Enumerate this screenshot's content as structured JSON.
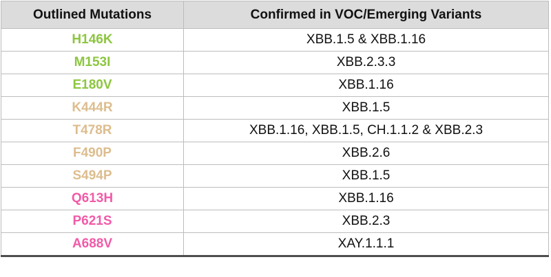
{
  "table": {
    "headers": [
      "Outlined Mutations",
      "Confirmed in VOC/Emerging Variants"
    ],
    "group_colors": {
      "green": "#8cc63f",
      "tan": "#ddbd8e",
      "pink": "#f25aa8"
    },
    "rows": [
      {
        "mutation": "H146K",
        "variants": "XBB.1.5 & XBB.1.16",
        "group": "green"
      },
      {
        "mutation": "M153I",
        "variants": "XBB.2.3.3",
        "group": "green"
      },
      {
        "mutation": "E180V",
        "variants": "XBB.1.16",
        "group": "green"
      },
      {
        "mutation": "K444R",
        "variants": "XBB.1.5",
        "group": "tan"
      },
      {
        "mutation": "T478R",
        "variants": "XBB.1.16, XBB.1.5, CH.1.1.2 & XBB.2.3",
        "group": "tan"
      },
      {
        "mutation": "F490P",
        "variants": "XBB.2.6",
        "group": "tan"
      },
      {
        "mutation": "S494P",
        "variants": "XBB.1.5",
        "group": "tan"
      },
      {
        "mutation": "Q613H",
        "variants": "XBB.1.16",
        "group": "pink"
      },
      {
        "mutation": "P621S",
        "variants": "XBB.2.3",
        "group": "pink"
      },
      {
        "mutation": "A688V",
        "variants": "XAY.1.1.1",
        "group": "pink"
      }
    ]
  }
}
